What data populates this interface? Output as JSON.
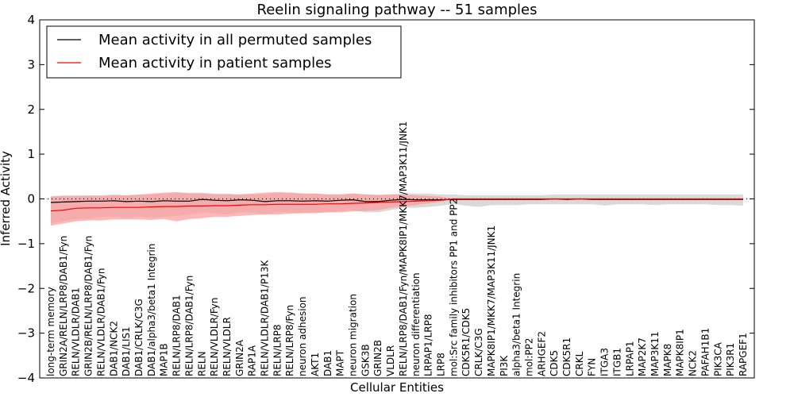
{
  "chart_data": {
    "type": "line",
    "title": "Reelin signaling pathway -- 51 samples",
    "xlabel": "Cellular Entities",
    "ylabel": "Inferred Activity",
    "ylim": [
      -4,
      4
    ],
    "yticks": [
      4,
      3,
      2,
      1,
      0,
      -1,
      -2,
      -3,
      -4
    ],
    "ytick_labels": [
      "4",
      "3",
      "2",
      "1",
      "0",
      "−1",
      "−2",
      "−3",
      "−4"
    ],
    "grid": false,
    "legend_position": "top-left",
    "categories": [
      "long-term memory",
      "GRIN2A/RELN/LRP8/DAB1/Fyn",
      "RELN/VLDLR/DAB1",
      "GRIN2B/RELN/LRP8/DAB1/Fyn",
      "RELN/VLDLR/DAB1/Fyn",
      "DAB1/NCK2",
      "DAB1/LIS1",
      "DAB1/CRLK/C3G",
      "DAB1/alpha3/beta1 Integrin",
      "MAP1B",
      "RELN/LRP8/DAB1",
      "RELN/LRP8/DAB1/Fyn",
      "RELN",
      "RELN/VLDLR/Fyn",
      "RELN/VLDLR",
      "GRIN2A",
      "RAP1A",
      "RELN/VLDLR/DAB1/P13K",
      "RELN/LRP8",
      "RELN/LRP8/Fyn",
      "neuron adhesion",
      "AKT1",
      "DAB1",
      "MAPT",
      "neuron migration",
      "GSK3B",
      "GRIN2B",
      "VLDLR",
      "RELN/LRP8/DAB1/Fyn/MAPK8IP1/MKK7/MAP3K11/JNK1",
      "neuron differentiation",
      "LRPAP1/LRP8",
      "LRP8",
      "mol:Src family inhibitors PP1 and PP2",
      "CDK5R1/CDK5",
      "CRLK/C3G",
      "MAPK8IP1/MKK7/MAP3K11/JNK1",
      "PI3K",
      "alpha3/beta1 Integrin",
      "mol:PP2",
      "ARHGEF2",
      "CDK5",
      "CDK5R1",
      "CRKL",
      "FYN",
      "ITGA3",
      "ITGB1",
      "LRPAP1",
      "MAP2K7",
      "MAP3K11",
      "MAPK8",
      "MAPK8IP1",
      "NCK2",
      "PAFAH1B1",
      "PIK3CA",
      "PIK3R1",
      "RAPGEF1"
    ],
    "series": [
      {
        "name": "Mean activity in all permuted samples",
        "color": "#000000",
        "band_color": "#bbbbbb",
        "values": [
          -0.08,
          -0.07,
          -0.06,
          -0.05,
          -0.05,
          -0.04,
          -0.06,
          -0.05,
          -0.06,
          -0.04,
          -0.05,
          -0.05,
          -0.01,
          -0.03,
          -0.04,
          -0.02,
          -0.03,
          -0.06,
          -0.04,
          -0.04,
          -0.05,
          -0.04,
          -0.05,
          -0.03,
          -0.02,
          -0.06,
          -0.06,
          -0.03,
          -0.01,
          -0.02,
          -0.02,
          -0.02,
          -0.01,
          -0.01,
          -0.01,
          -0.01,
          -0.01,
          -0.01,
          -0.01,
          -0.01,
          0.0,
          -0.01,
          0.0,
          -0.01,
          -0.01,
          -0.01,
          -0.01,
          -0.01,
          -0.01,
          -0.01,
          -0.01,
          -0.01,
          -0.01,
          -0.01,
          -0.01,
          -0.01
        ],
        "band_lower": [
          -0.55,
          -0.5,
          -0.45,
          -0.45,
          -0.4,
          -0.4,
          -0.42,
          -0.4,
          -0.42,
          -0.4,
          -0.38,
          -0.35,
          -0.3,
          -0.32,
          -0.35,
          -0.3,
          -0.3,
          -0.35,
          -0.3,
          -0.3,
          -0.32,
          -0.3,
          -0.3,
          -0.28,
          -0.25,
          -0.3,
          -0.3,
          -0.25,
          -0.2,
          -0.2,
          -0.18,
          -0.15,
          -0.12,
          -0.15,
          -0.18,
          -0.14,
          -0.14,
          -0.14,
          -0.12,
          -0.12,
          -0.12,
          -0.12,
          -0.12,
          -0.12,
          -0.15,
          -0.12,
          -0.12,
          -0.12,
          -0.14,
          -0.12,
          -0.12,
          -0.12,
          -0.12,
          -0.14,
          -0.14,
          -0.15
        ],
        "band_upper": [
          0.06,
          0.08,
          0.08,
          0.08,
          0.08,
          0.1,
          0.08,
          0.1,
          0.1,
          0.12,
          0.14,
          0.14,
          0.14,
          0.12,
          0.12,
          0.1,
          0.1,
          0.1,
          0.14,
          0.14,
          0.12,
          0.12,
          0.1,
          0.1,
          0.12,
          0.1,
          0.1,
          0.1,
          0.12,
          0.12,
          0.12,
          0.1,
          0.1,
          0.08,
          0.08,
          0.08,
          0.08,
          0.08,
          0.08,
          0.08,
          0.1,
          0.1,
          0.1,
          0.1,
          0.1,
          0.1,
          0.1,
          0.1,
          0.1,
          0.1,
          0.1,
          0.1,
          0.1,
          0.1,
          0.1,
          0.1
        ]
      },
      {
        "name": "Mean activity in patient samples",
        "color": "#ff0000",
        "band_color": "#ff9999",
        "values": [
          -0.27,
          -0.25,
          -0.21,
          -0.2,
          -0.2,
          -0.19,
          -0.19,
          -0.19,
          -0.18,
          -0.17,
          -0.17,
          -0.16,
          -0.16,
          -0.15,
          -0.15,
          -0.14,
          -0.13,
          -0.13,
          -0.12,
          -0.12,
          -0.12,
          -0.12,
          -0.11,
          -0.11,
          -0.1,
          -0.09,
          -0.08,
          -0.07,
          -0.06,
          -0.05,
          -0.04,
          -0.03,
          0.0,
          0.0,
          0.0,
          0.0,
          0.0,
          0.0,
          0.0,
          0.0,
          0.0,
          0.0,
          0.0,
          0.0,
          0.0,
          0.0,
          0.0,
          0.0,
          0.0,
          0.0,
          0.0,
          0.0,
          0.0,
          0.0,
          0.0,
          0.0
        ],
        "band_lower": [
          -0.6,
          -0.55,
          -0.5,
          -0.48,
          -0.48,
          -0.46,
          -0.46,
          -0.46,
          -0.47,
          -0.45,
          -0.5,
          -0.45,
          -0.43,
          -0.4,
          -0.4,
          -0.38,
          -0.36,
          -0.35,
          -0.35,
          -0.33,
          -0.32,
          -0.32,
          -0.3,
          -0.3,
          -0.28,
          -0.27,
          -0.25,
          -0.2,
          -0.17,
          -0.14,
          -0.1,
          -0.06,
          0.0,
          0.0,
          0.0,
          0.0,
          0.0,
          0.0,
          0.0,
          0.0,
          0.0,
          0.0,
          0.0,
          0.0,
          0.0,
          0.0,
          0.0,
          0.0,
          0.0,
          0.0,
          0.0,
          0.0,
          0.0,
          0.0,
          0.0,
          0.0
        ],
        "band_upper": [
          0.05,
          0.06,
          0.06,
          0.07,
          0.07,
          0.08,
          0.08,
          0.09,
          0.12,
          0.14,
          0.15,
          0.12,
          0.12,
          0.1,
          0.1,
          0.1,
          0.12,
          0.14,
          0.15,
          0.14,
          0.12,
          0.12,
          0.1,
          0.1,
          0.12,
          0.1,
          0.08,
          0.1,
          0.1,
          0.08,
          0.07,
          0.05,
          0.0,
          0.0,
          0.0,
          0.0,
          0.0,
          0.0,
          0.0,
          0.0,
          0.0,
          0.0,
          0.0,
          0.0,
          0.0,
          0.0,
          0.0,
          0.0,
          0.0,
          0.0,
          0.0,
          0.0,
          0.0,
          0.0,
          0.0,
          0.0
        ]
      }
    ],
    "reference_line": {
      "style": "dotted",
      "value": 0.0
    }
  }
}
